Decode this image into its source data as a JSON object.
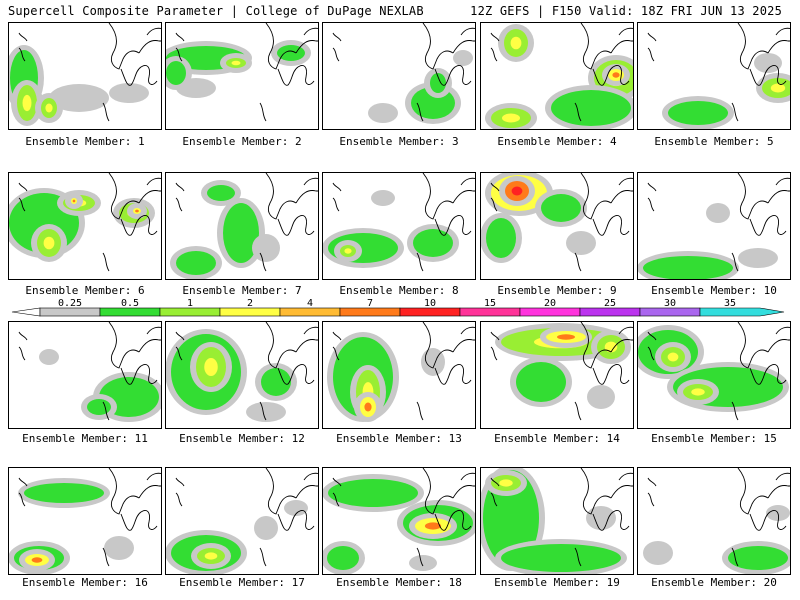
{
  "header": {
    "title_left": "Supercell Composite Parameter | College of DuPage NEXLAB",
    "title_right": "12Z GEFS | F150 Valid: 18Z FRI JUN 13 2025"
  },
  "legend": {
    "ticks": [
      "0.25",
      "0.5",
      "1",
      "2",
      "4",
      "7",
      "10",
      "15",
      "20",
      "25",
      "30",
      "35"
    ],
    "colors": [
      "#c8c8c8",
      "#33dd33",
      "#99ee33",
      "#ffff44",
      "#ffbb33",
      "#ff7a1a",
      "#ff2222",
      "#ff3399",
      "#ff33dd",
      "#bb33ee",
      "#aa66ee",
      "#33dddd"
    ]
  },
  "caption_prefix": "Ensemble Member: ",
  "members": [
    {
      "label": "Ensemble Member: 1",
      "blobs": [
        [
          15,
          55,
          14,
          28,
          1
        ],
        [
          18,
          80,
          10,
          18,
          2
        ],
        [
          70,
          75,
          30,
          14,
          0
        ],
        [
          40,
          85,
          8,
          10,
          2
        ],
        [
          120,
          70,
          20,
          10,
          0
        ]
      ]
    },
    {
      "label": "Ensemble Member: 2",
      "blobs": [
        [
          40,
          35,
          40,
          12,
          1
        ],
        [
          70,
          40,
          10,
          5,
          2
        ],
        [
          125,
          30,
          14,
          8,
          1
        ],
        [
          30,
          65,
          20,
          10,
          0
        ],
        [
          10,
          50,
          10,
          12,
          1
        ]
      ]
    },
    {
      "label": "Ensemble Member: 3",
      "blobs": [
        [
          110,
          80,
          22,
          16,
          1
        ],
        [
          60,
          90,
          15,
          10,
          0
        ],
        [
          140,
          35,
          10,
          8,
          0
        ],
        [
          115,
          60,
          8,
          10,
          1
        ]
      ]
    },
    {
      "label": "Ensemble Member: 4",
      "blobs": [
        [
          135,
          55,
          22,
          18,
          2
        ],
        [
          110,
          85,
          40,
          18,
          1
        ],
        [
          30,
          95,
          20,
          10,
          2
        ],
        [
          35,
          20,
          12,
          14,
          2
        ],
        [
          135,
          52,
          8,
          6,
          3
        ]
      ]
    },
    {
      "label": "Ensemble Member: 5",
      "blobs": [
        [
          140,
          65,
          16,
          10,
          2
        ],
        [
          60,
          90,
          30,
          12,
          1
        ],
        [
          130,
          40,
          14,
          10,
          0
        ]
      ]
    },
    {
      "label": "Ensemble Member: 6",
      "blobs": [
        [
          35,
          50,
          35,
          30,
          1
        ],
        [
          70,
          30,
          16,
          8,
          2
        ],
        [
          125,
          40,
          15,
          10,
          2
        ],
        [
          40,
          70,
          12,
          14,
          2
        ],
        [
          128,
          38,
          4,
          3,
          3
        ],
        [
          65,
          28,
          3,
          3,
          3
        ]
      ]
    },
    {
      "label": "Ensemble Member: 7",
      "blobs": [
        [
          75,
          60,
          18,
          30,
          1
        ],
        [
          30,
          90,
          20,
          12,
          1
        ],
        [
          55,
          20,
          14,
          8,
          1
        ],
        [
          100,
          75,
          14,
          14,
          0
        ]
      ]
    },
    {
      "label": "Ensemble Member: 8",
      "blobs": [
        [
          40,
          75,
          35,
          15,
          1
        ],
        [
          110,
          70,
          20,
          14,
          1
        ],
        [
          60,
          25,
          12,
          8,
          0
        ],
        [
          25,
          78,
          8,
          6,
          2
        ]
      ]
    },
    {
      "label": "Ensemble Member: 9",
      "blobs": [
        [
          38,
          20,
          28,
          18,
          3
        ],
        [
          36,
          18,
          12,
          10,
          4
        ],
        [
          80,
          35,
          20,
          14,
          1
        ],
        [
          20,
          65,
          15,
          20,
          1
        ],
        [
          100,
          70,
          15,
          12,
          0
        ]
      ]
    },
    {
      "label": "Ensemble Member: 10",
      "blobs": [
        [
          50,
          95,
          45,
          12,
          1
        ],
        [
          120,
          85,
          20,
          10,
          0
        ],
        [
          80,
          40,
          12,
          10,
          0
        ]
      ]
    },
    {
      "label": "Ensemble Member: 11",
      "blobs": [
        [
          120,
          75,
          30,
          20,
          1
        ],
        [
          40,
          35,
          10,
          8,
          0
        ],
        [
          90,
          85,
          12,
          8,
          1
        ]
      ]
    },
    {
      "label": "Ensemble Member: 12",
      "blobs": [
        [
          40,
          50,
          35,
          38,
          1
        ],
        [
          45,
          45,
          15,
          20,
          2
        ],
        [
          110,
          60,
          15,
          14,
          1
        ],
        [
          100,
          90,
          20,
          10,
          0
        ]
      ]
    },
    {
      "label": "Ensemble Member: 13",
      "blobs": [
        [
          40,
          55,
          30,
          40,
          1
        ],
        [
          45,
          70,
          12,
          22,
          2
        ],
        [
          45,
          85,
          8,
          10,
          3
        ],
        [
          110,
          40,
          12,
          14,
          0
        ]
      ]
    },
    {
      "label": "Ensemble Member: 14",
      "blobs": [
        [
          80,
          20,
          60,
          14,
          2
        ],
        [
          85,
          15,
          20,
          6,
          3
        ],
        [
          130,
          25,
          14,
          12,
          2
        ],
        [
          60,
          60,
          25,
          20,
          1
        ],
        [
          120,
          75,
          14,
          12,
          0
        ]
      ]
    },
    {
      "label": "Ensemble Member: 15",
      "blobs": [
        [
          30,
          30,
          30,
          22,
          1
        ],
        [
          35,
          35,
          12,
          10,
          2
        ],
        [
          90,
          65,
          55,
          20,
          1
        ],
        [
          60,
          70,
          15,
          8,
          2
        ]
      ]
    },
    {
      "label": "Ensemble Member: 16",
      "blobs": [
        [
          55,
          25,
          40,
          10,
          1
        ],
        [
          30,
          90,
          25,
          12,
          1
        ],
        [
          28,
          92,
          12,
          6,
          3
        ],
        [
          110,
          80,
          15,
          12,
          0
        ]
      ]
    },
    {
      "label": "Ensemble Member: 17",
      "blobs": [
        [
          40,
          85,
          35,
          18,
          1
        ],
        [
          45,
          88,
          14,
          8,
          2
        ],
        [
          100,
          60,
          12,
          12,
          0
        ],
        [
          130,
          40,
          12,
          8,
          0
        ]
      ]
    },
    {
      "label": "Ensemble Member: 18",
      "blobs": [
        [
          50,
          25,
          45,
          14,
          1
        ],
        [
          115,
          55,
          35,
          18,
          1
        ],
        [
          110,
          58,
          18,
          8,
          3
        ],
        [
          20,
          90,
          16,
          12,
          1
        ],
        [
          100,
          95,
          14,
          8,
          0
        ]
      ]
    },
    {
      "label": "Ensemble Member: 19",
      "blobs": [
        [
          30,
          50,
          28,
          48,
          1
        ],
        [
          80,
          90,
          60,
          14,
          1
        ],
        [
          25,
          15,
          15,
          8,
          2
        ],
        [
          120,
          50,
          15,
          12,
          0
        ]
      ]
    },
    {
      "label": "Ensemble Member: 20",
      "blobs": [
        [
          120,
          90,
          30,
          12,
          1
        ],
        [
          20,
          85,
          15,
          12,
          0
        ],
        [
          140,
          45,
          12,
          8,
          0
        ]
      ]
    }
  ]
}
